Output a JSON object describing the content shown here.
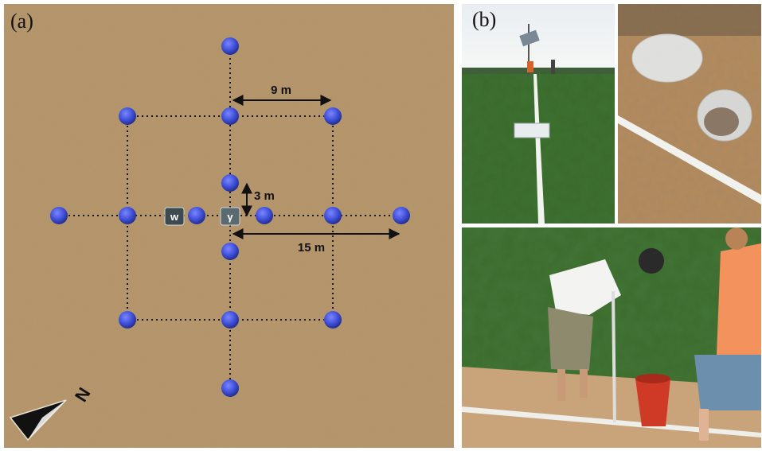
{
  "panel_a": {
    "label": "(a)",
    "distance_labels": {
      "d9": "9 m",
      "d3": "3 m",
      "d15": "15 m"
    },
    "instruments": {
      "w": "w",
      "gamma": "γ"
    },
    "compass": {
      "north_label": "N"
    },
    "colors": {
      "soil": "#b59468",
      "point": "#3f4fd8",
      "box": "#3d4a4f",
      "line": "#1a1a1a"
    }
  },
  "panel_b": {
    "label": "(b)"
  }
}
